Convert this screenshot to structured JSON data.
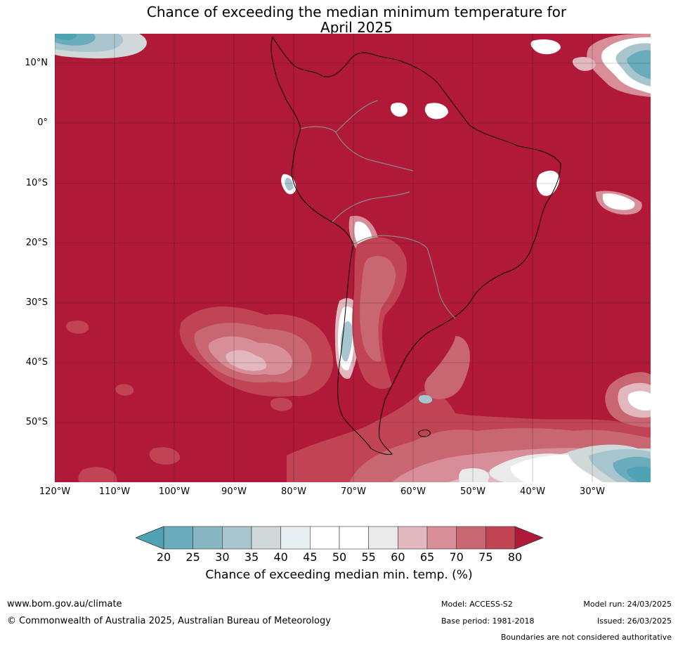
{
  "title_line1": "Chance of exceeding the median minimum temperature for",
  "title_line2": "April 2025",
  "map": {
    "lat_labels": [
      "10°N",
      "0°",
      "10°S",
      "20°S",
      "30°S",
      "40°S",
      "50°S"
    ],
    "lon_labels": [
      "120°W",
      "110°W",
      "100°W",
      "90°W",
      "80°W",
      "70°W",
      "60°W",
      "50°W",
      "40°W",
      "30°W"
    ],
    "colors": {
      "c80": "#b01a38",
      "c75": "#c04454",
      "c70": "#c86672",
      "c65": "#d88e98",
      "c60": "#e2b7bd",
      "c55": "#eaeaea",
      "c50": "#ffffff",
      "c40": "#e8eff2",
      "c35": "#d0d8da",
      "c30": "#a8c4cc",
      "c25": "#88b6c2",
      "c20": "#6aacbc",
      "cmin": "#4ea4b4"
    }
  },
  "colorbar": {
    "ticks": [
      "20",
      "25",
      "30",
      "35",
      "40",
      "45",
      "50",
      "55",
      "60",
      "65",
      "70",
      "75",
      "80"
    ],
    "label": "Chance of exceeding median min. temp. (%)",
    "segment_colors": [
      "#6aacbc",
      "#88b6c2",
      "#a8c4cc",
      "#d0d8da",
      "#e8eff2",
      "#ffffff",
      "#ffffff",
      "#eaeaea",
      "#e2b7bd",
      "#d88e98",
      "#c86672",
      "#c04454"
    ],
    "low_color": "#4ea4b4",
    "high_color": "#b01a38"
  },
  "footer": {
    "url": "www.bom.gov.au/climate",
    "copyright": "© Commonwealth of Australia 2025, Australian Bureau of Meteorology",
    "model": "Model: ACCESS-S2",
    "base_period": "Base period: 1981-2018",
    "model_run": "Model run: 24/03/2025",
    "issued": "Issued: 26/03/2025",
    "boundaries_note": "Boundaries are not considered authoritative"
  }
}
